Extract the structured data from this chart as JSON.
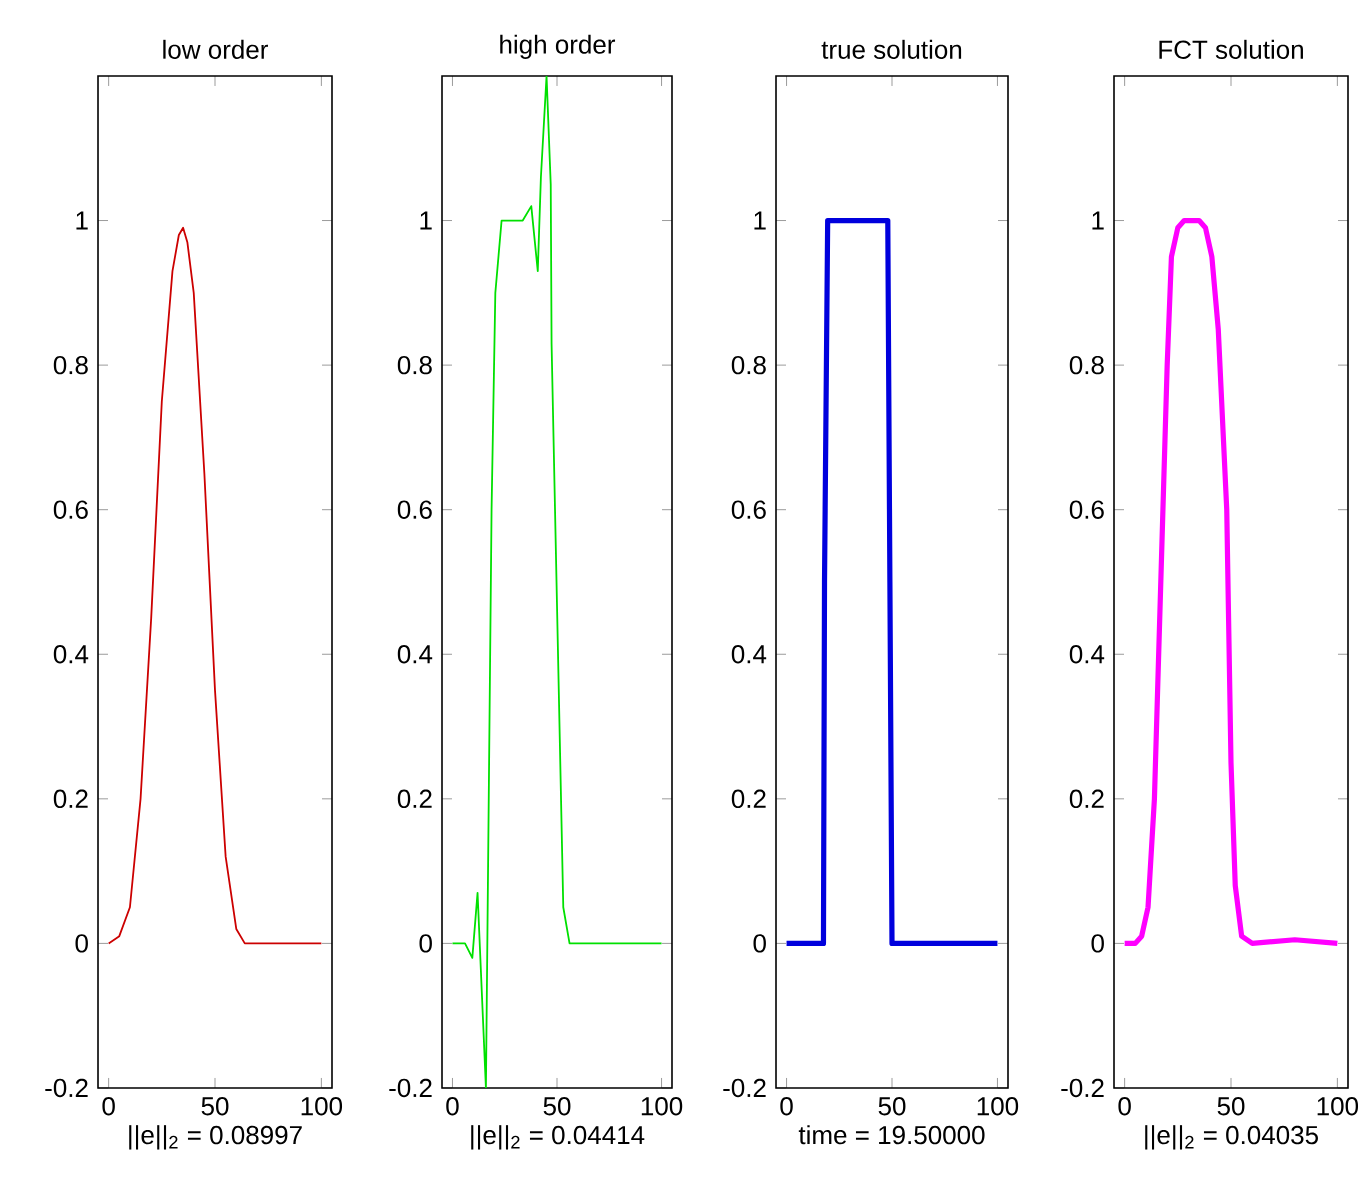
{
  "chart_data": [
    {
      "type": "line",
      "title": "low order",
      "xlabel": "||e||$_{2}$ = 0.08997",
      "color": "#cc0000",
      "xlim": [
        -5,
        105
      ],
      "ylim": [
        -0.2,
        1.2
      ],
      "xticks": [
        0,
        50,
        100
      ],
      "yticks": [
        -0.2,
        0,
        0.2,
        0.4,
        0.6,
        0.8,
        1
      ],
      "x": [
        0,
        5,
        10,
        15,
        20,
        25,
        30,
        33,
        35,
        37,
        40,
        45,
        50,
        55,
        60,
        64,
        100
      ],
      "values": [
        0,
        0.01,
        0.05,
        0.2,
        0.45,
        0.75,
        0.93,
        0.98,
        0.99,
        0.97,
        0.9,
        0.65,
        0.35,
        0.12,
        0.02,
        0,
        0
      ]
    },
    {
      "type": "line",
      "title": "high order",
      "xlabel": "||e||$_{2}$ = 0.04414",
      "color": "#00e000",
      "xlim": [
        -5,
        105
      ],
      "ylim": [
        -0.2,
        1.2
      ],
      "xticks": [
        0,
        50,
        100
      ],
      "yticks": [
        -0.2,
        0,
        0.2,
        0.4,
        0.6,
        0.8,
        1
      ],
      "x": [
        0,
        6,
        9.5,
        12,
        16,
        18.7,
        20.5,
        23.5,
        33.6,
        37.7,
        40.8,
        42.3,
        45,
        47,
        47.4,
        53,
        56,
        100
      ],
      "values": [
        0,
        0,
        -0.02,
        0.07,
        -0.2,
        0.6,
        0.9,
        1.0,
        1.0,
        1.02,
        0.93,
        1.06,
        1.2,
        1.05,
        0.83,
        0.05,
        0,
        0
      ]
    },
    {
      "type": "line",
      "title": "true solution",
      "xlabel": "time = 19.50000",
      "color": "#0000dd",
      "xlim": [
        -5,
        105
      ],
      "ylim": [
        -0.2,
        1.2
      ],
      "xticks": [
        0,
        50,
        100
      ],
      "yticks": [
        -0.2,
        0,
        0.2,
        0.4,
        0.6,
        0.8,
        1
      ],
      "x": [
        0,
        17.5,
        18,
        19.5,
        48,
        49,
        50,
        100
      ],
      "values": [
        0,
        0,
        0.5,
        1,
        1,
        0.5,
        0,
        0
      ]
    },
    {
      "type": "line",
      "title": "FCT solution",
      "xlabel": "||e||$_{2}$ = 0.04035",
      "color": "#ff00ff",
      "xlim": [
        -5,
        105
      ],
      "ylim": [
        -0.2,
        1.2
      ],
      "xticks": [
        0,
        50,
        100
      ],
      "yticks": [
        -0.2,
        0,
        0.2,
        0.4,
        0.6,
        0.8,
        1
      ],
      "x": [
        0,
        5,
        8,
        11,
        14,
        18,
        20,
        22,
        25,
        28,
        35,
        38,
        41,
        44,
        48,
        50,
        52,
        55,
        60,
        80,
        100
      ],
      "values": [
        0,
        0,
        0.01,
        0.05,
        0.2,
        0.6,
        0.8,
        0.95,
        0.99,
        1.0,
        1.0,
        0.99,
        0.95,
        0.85,
        0.6,
        0.25,
        0.08,
        0.01,
        0,
        0.005,
        0
      ]
    }
  ]
}
